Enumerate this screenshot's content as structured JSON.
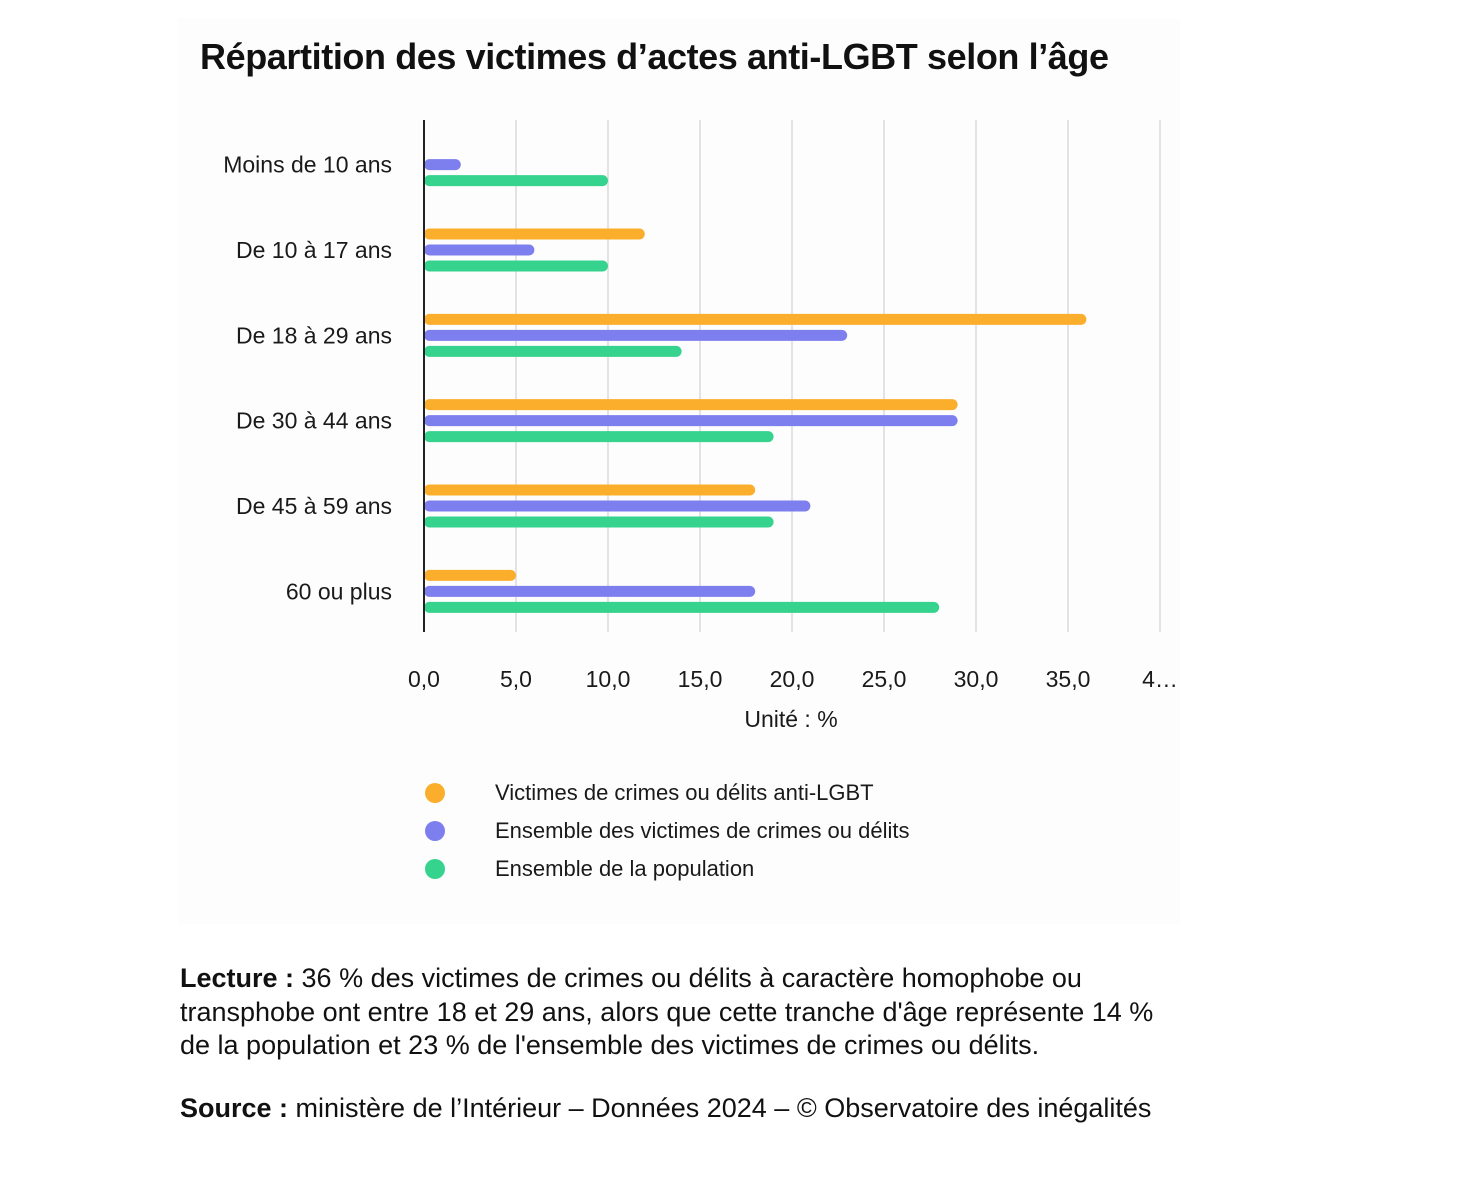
{
  "chart_data": {
    "type": "bar",
    "orientation": "horizontal",
    "title": "Répartition des victimes d’actes anti-LGBT selon l’âge",
    "xlabel": "Unité : %",
    "ylabel": "",
    "categories": [
      "Moins de 10 ans",
      "De 10 à 17 ans",
      "De 18 à 29 ans",
      "De 30 à 44 ans",
      "De 45 à 59 ans",
      "60 ou plus"
    ],
    "series": [
      {
        "name": "Victimes de crimes ou délits anti-LGBT",
        "color": "#FBAE2C",
        "values": [
          null,
          12,
          36,
          29,
          18,
          5
        ]
      },
      {
        "name": "Ensemble des victimes de crimes ou délits",
        "color": "#7D7FEF",
        "values": [
          2,
          6,
          23,
          29,
          21,
          18
        ]
      },
      {
        "name": "Ensemble de la population",
        "color": "#35D38D",
        "values": [
          10,
          10,
          14,
          19,
          19,
          28
        ]
      }
    ],
    "xlim": [
      0,
      40
    ],
    "xticks": [
      "0,0",
      "5,0",
      "10,0",
      "15,0",
      "20,0",
      "25,0",
      "30,0",
      "35,0",
      "4…"
    ],
    "grid": true,
    "legend_position": "bottom"
  },
  "notes": {
    "lecture_label": "Lecture :",
    "lecture_text": " 36 % des victimes de crimes ou délits à caractère homophobe ou transphobe ont entre 18 et 29 ans, alors que cette tranche d'âge représente 14 % de la population et 23 % de l'ensemble des victimes de crimes ou délits.",
    "source_label": "Source :",
    "source_text": " ministère de l’Intérieur – Données 2024 – © Observatoire des inégalités"
  }
}
